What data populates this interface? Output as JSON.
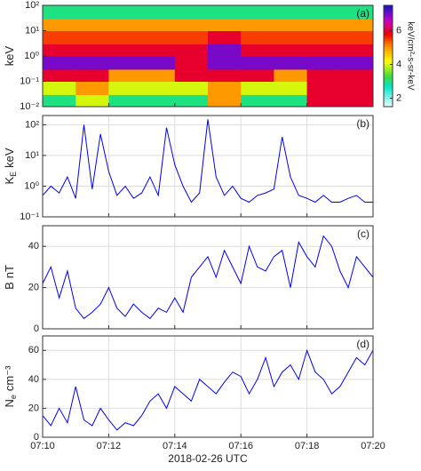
{
  "chart_data": [
    {
      "type": "heatmap",
      "annotation": "(a)",
      "ylabel": "keV",
      "log_y": true,
      "x_bins": [
        10,
        11,
        12,
        13,
        14,
        15,
        16,
        17,
        18,
        19,
        20
      ],
      "y_bins": [
        0.01,
        0.03,
        0.1,
        0.3,
        1,
        3,
        10,
        30,
        100
      ],
      "z": [
        [
          3,
          4,
          3,
          3,
          3,
          5,
          3,
          3,
          6,
          6
        ],
        [
          4,
          5,
          4,
          4,
          4,
          5,
          4,
          4,
          6,
          6
        ],
        [
          6,
          6,
          5,
          5,
          6,
          6,
          6,
          5,
          6,
          6
        ],
        [
          7,
          7,
          7,
          7,
          6,
          7,
          7,
          7,
          7,
          7
        ],
        [
          6,
          6,
          6,
          6,
          6,
          7,
          6,
          6,
          6,
          6
        ],
        [
          5.5,
          5.5,
          5.5,
          5.5,
          5.5,
          6,
          5.5,
          5.5,
          5.5,
          5.5
        ],
        [
          5,
          5,
          5,
          5,
          5,
          5,
          5,
          5,
          5,
          5
        ],
        [
          3,
          3,
          3,
          3,
          3,
          3,
          3,
          3,
          3,
          3
        ]
      ],
      "xlim": [
        10,
        20
      ],
      "ylim": [
        0.01,
        100
      ],
      "yticks": [
        {
          "value": 0.01,
          "label": "10⁻²"
        },
        {
          "value": 0.1,
          "label": "10⁻¹"
        },
        {
          "value": 1,
          "label": "10⁰"
        },
        {
          "value": 10,
          "label": "10¹"
        },
        {
          "value": 100,
          "label": "10²"
        }
      ],
      "colorbar": {
        "label": "keV/cm²-s-sr-keV",
        "lim": [
          1.5,
          7.5
        ],
        "ticks": [
          2,
          4,
          6
        ]
      }
    },
    {
      "type": "line",
      "annotation": "(b)",
      "ylabel": "K",
      "ylabel_sub": "E",
      "ylabel_unit": "keV",
      "log_y": true,
      "grid": true,
      "color": "#0000ee",
      "x": [
        10,
        10.25,
        10.5,
        10.75,
        11,
        11.25,
        11.5,
        11.75,
        12,
        12.25,
        12.5,
        12.75,
        13,
        13.25,
        13.5,
        13.75,
        14,
        14.25,
        14.5,
        14.75,
        15,
        15.25,
        15.5,
        15.75,
        16,
        16.25,
        16.5,
        16.75,
        17,
        17.25,
        17.5,
        17.75,
        18,
        18.25,
        18.5,
        18.75,
        19,
        19.25,
        19.5,
        19.75,
        20
      ],
      "values": [
        0.5,
        1,
        0.6,
        2,
        0.4,
        100,
        0.8,
        50,
        3,
        0.5,
        1,
        0.4,
        0.6,
        2,
        0.5,
        80,
        5,
        1,
        0.3,
        0.6,
        150,
        2,
        0.5,
        1,
        0.4,
        0.3,
        0.5,
        0.6,
        0.8,
        40,
        2,
        0.5,
        0.4,
        0.3,
        0.5,
        0.3,
        0.3,
        0.4,
        0.5,
        0.3,
        0.3
      ],
      "xlim": [
        10,
        20
      ],
      "ylim": [
        0.1,
        200
      ],
      "yticks": [
        {
          "value": 0.1,
          "label": "10⁻¹"
        },
        {
          "value": 1,
          "label": "10⁰"
        },
        {
          "value": 10,
          "label": "10¹"
        },
        {
          "value": 100,
          "label": "10²"
        }
      ]
    },
    {
      "type": "line",
      "annotation": "(c)",
      "ylabel": "B",
      "ylabel_unit": "nT",
      "grid": true,
      "color": "#0000ee",
      "x": [
        10,
        10.25,
        10.5,
        10.75,
        11,
        11.25,
        11.5,
        11.75,
        12,
        12.25,
        12.5,
        12.75,
        13,
        13.25,
        13.5,
        13.75,
        14,
        14.25,
        14.5,
        14.75,
        15,
        15.25,
        15.5,
        15.75,
        16,
        16.25,
        16.5,
        16.75,
        17,
        17.25,
        17.5,
        17.75,
        18,
        18.25,
        18.5,
        18.75,
        19,
        19.25,
        19.5,
        19.75,
        20
      ],
      "values": [
        22,
        30,
        15,
        28,
        10,
        5,
        8,
        12,
        20,
        10,
        6,
        12,
        8,
        5,
        10,
        8,
        15,
        8,
        25,
        30,
        35,
        25,
        38,
        30,
        22,
        40,
        30,
        28,
        35,
        38,
        20,
        42,
        35,
        30,
        45,
        40,
        28,
        20,
        35,
        30,
        25
      ],
      "xlim": [
        10,
        20
      ],
      "ylim": [
        0,
        50
      ],
      "yticks": [
        0,
        20,
        40
      ]
    },
    {
      "type": "line",
      "annotation": "(d)",
      "ylabel": "N",
      "ylabel_sub": "e",
      "ylabel_unit": "cm⁻³",
      "grid": true,
      "color": "#0000ee",
      "x": [
        10,
        10.25,
        10.5,
        10.75,
        11,
        11.25,
        11.5,
        11.75,
        12,
        12.25,
        12.5,
        12.75,
        13,
        13.25,
        13.5,
        13.75,
        14,
        14.25,
        14.5,
        14.75,
        15,
        15.25,
        15.5,
        15.75,
        16,
        16.25,
        16.5,
        16.75,
        17,
        17.25,
        17.5,
        17.75,
        18,
        18.25,
        18.5,
        18.75,
        19,
        19.25,
        19.5,
        19.75,
        20
      ],
      "values": [
        15,
        8,
        20,
        10,
        35,
        12,
        8,
        20,
        12,
        5,
        10,
        8,
        15,
        25,
        30,
        20,
        35,
        30,
        25,
        40,
        35,
        30,
        38,
        45,
        42,
        30,
        40,
        55,
        35,
        45,
        50,
        40,
        60,
        45,
        40,
        30,
        35,
        45,
        55,
        50,
        60
      ],
      "xlim": [
        10,
        20
      ],
      "ylim": [
        0,
        70
      ],
      "yticks": [
        0,
        20,
        40,
        60
      ],
      "xticks": [
        {
          "value": 10,
          "label": "07:10"
        },
        {
          "value": 12,
          "label": "07:12"
        },
        {
          "value": 14,
          "label": "07:14"
        },
        {
          "value": 16,
          "label": "07:16"
        },
        {
          "value": 18,
          "label": "07:18"
        },
        {
          "value": 20,
          "label": "07:20"
        }
      ],
      "xlabel": "2018-02-26 UTC"
    }
  ]
}
